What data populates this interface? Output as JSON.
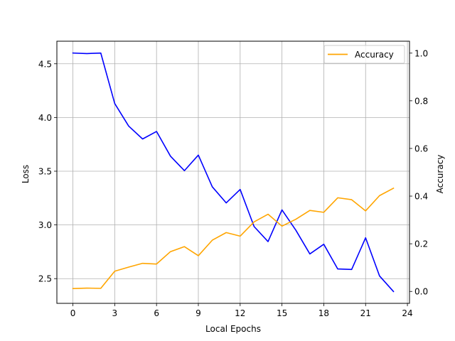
{
  "chart_data": {
    "type": "line",
    "xlabel": "Local Epochs",
    "ylabel_left": "Loss",
    "ylabel_right": "Accuracy",
    "x": [
      0,
      1,
      2,
      3,
      4,
      5,
      6,
      7,
      8,
      9,
      10,
      11,
      12,
      13,
      14,
      15,
      16,
      17,
      18,
      19,
      20,
      21,
      22,
      23
    ],
    "x_ticks": [
      0,
      3,
      6,
      9,
      12,
      15,
      18,
      21,
      24
    ],
    "x_tick_labels": [
      "0",
      "3",
      "6",
      "9",
      "12",
      "15",
      "18",
      "21",
      "24"
    ],
    "xlim": [
      -1.15,
      24.15
    ],
    "ylim_left": [
      2.27,
      4.71
    ],
    "ylim_right": [
      -0.05,
      1.05
    ],
    "left_ticks": [
      2.5,
      3.0,
      3.5,
      4.0,
      4.5
    ],
    "left_tick_labels": [
      "2.5",
      "3.0",
      "3.5",
      "4.0",
      "4.5"
    ],
    "right_ticks": [
      0.0,
      0.2,
      0.4,
      0.6,
      0.8,
      1.0
    ],
    "right_tick_labels": [
      "0.0",
      "0.2",
      "0.4",
      "0.6",
      "0.8",
      "1.0"
    ],
    "grid": true,
    "legend_position": "top-right",
    "series": [
      {
        "name": "",
        "axis": "left",
        "color": "#0000ff",
        "values": [
          4.6,
          4.595,
          4.6,
          4.13,
          3.92,
          3.8,
          3.87,
          3.64,
          3.505,
          3.65,
          3.355,
          3.205,
          3.33,
          2.985,
          2.845,
          3.14,
          2.95,
          2.73,
          2.82,
          2.59,
          2.585,
          2.88,
          2.525,
          2.38
        ]
      },
      {
        "name": "Accuracy",
        "axis": "right",
        "color": "#ffa500",
        "values": [
          0.012,
          0.014,
          0.013,
          0.085,
          0.102,
          0.118,
          0.115,
          0.167,
          0.188,
          0.15,
          0.215,
          0.247,
          0.232,
          0.292,
          0.324,
          0.274,
          0.303,
          0.34,
          0.332,
          0.393,
          0.385,
          0.338,
          0.402,
          0.433
        ]
      }
    ]
  }
}
